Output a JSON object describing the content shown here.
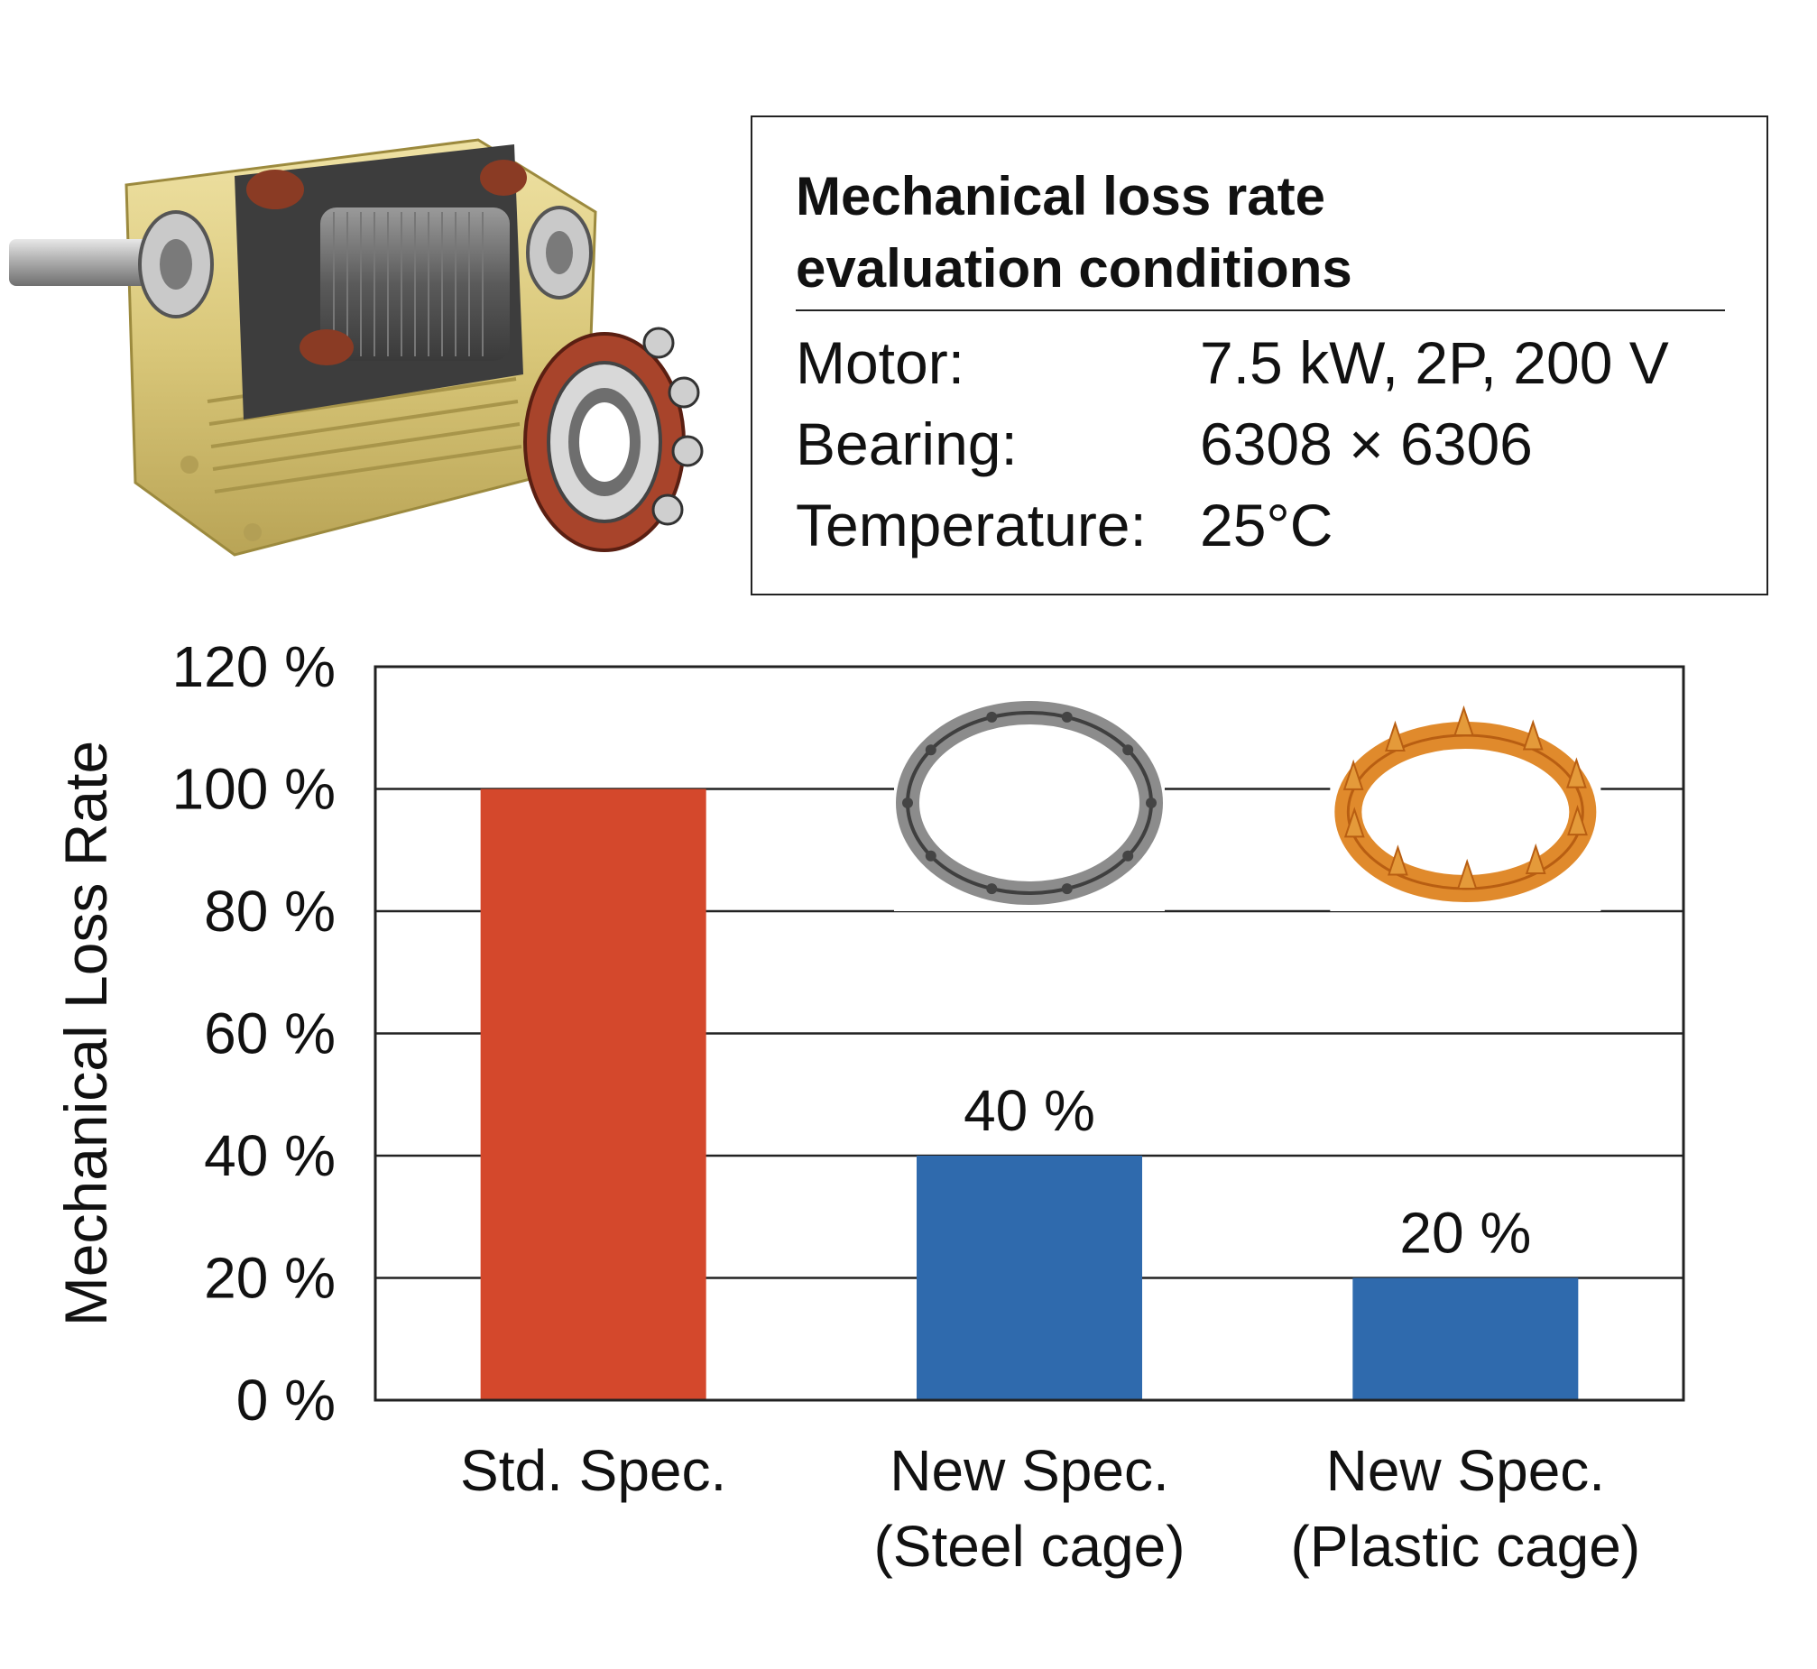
{
  "conditions": {
    "title_line1": "Mechanical loss rate",
    "title_line2": "evaluation conditions",
    "rows": [
      {
        "label": "Motor:",
        "value": "7.5 kW, 2P, 200 V"
      },
      {
        "label": "Bearing:",
        "value": "6308 × 6306"
      },
      {
        "label": "Temperature:",
        "value": "25°C"
      }
    ]
  },
  "chart_data": {
    "type": "bar",
    "ylabel": "Mechanical Loss Rate",
    "ylim": [
      0,
      120
    ],
    "yticks": [
      "0 %",
      "20 %",
      "40 %",
      "60 %",
      "80 %",
      "100 %",
      "120 %"
    ],
    "grid": true,
    "categories": [
      [
        "Std. Spec."
      ],
      [
        "New Spec.",
        "(Steel cage)"
      ],
      [
        "New Spec.",
        "(Plastic cage)"
      ]
    ],
    "values": [
      100,
      40,
      20
    ],
    "data_labels": [
      "",
      "40 %",
      "20 %"
    ],
    "colors": [
      "#d4482c",
      "#2f6aad",
      "#2f6aad"
    ]
  },
  "icons": {
    "motor": "electric-motor-cutaway-illustration",
    "bearing": "ball-bearing-icon",
    "steel_cage": "steel-cage-icon",
    "plastic_cage": "plastic-cage-icon"
  }
}
